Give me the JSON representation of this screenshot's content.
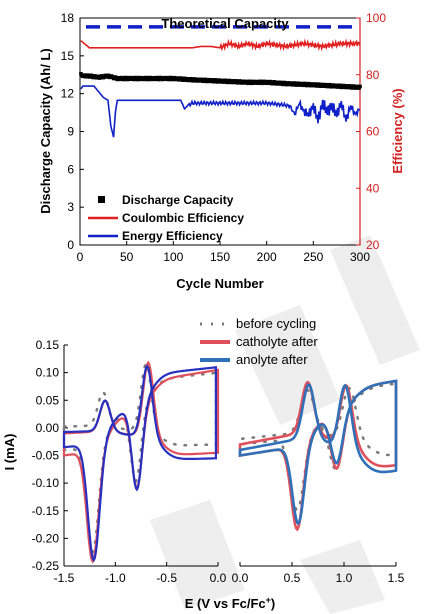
{
  "colors": {
    "discharge": "#000000",
    "coulombic": "#e02020",
    "energy": "#1020c8",
    "theoretical": "#1020c8",
    "before": "#7a7a7a",
    "catholyte": "#e0505a",
    "anolyte": "#3070b8",
    "cv_red": "#e0505a",
    "cv_blue": "#2830c0",
    "watermark": "#ececec"
  },
  "chart_data": [
    {
      "type": "line",
      "title": "",
      "xlabel": "Cycle Number",
      "ylabel": "Discharge Capacity (Ah/ L)",
      "y2label": "Efficiency (%)",
      "xlim": [
        0,
        300
      ],
      "ylim": [
        0,
        18
      ],
      "y2lim": [
        20,
        100
      ],
      "xticks": [
        "0",
        "50",
        "100",
        "150",
        "200",
        "250",
        "300"
      ],
      "yticks": [
        "0",
        "3",
        "6",
        "9",
        "12",
        "15",
        "18"
      ],
      "y2ticks": [
        "20",
        "40",
        "60",
        "80",
        "100"
      ],
      "annotation": "Theoretical Capacity",
      "theoretical_capacity": 17.3,
      "legend": [
        "Discharge Capacity",
        "Coulombic Efficiency",
        "Energy Efficiency"
      ],
      "legend_position": "bottom-left",
      "series": [
        {
          "name": "Discharge Capacity",
          "axis": "left",
          "x": [
            1,
            5,
            10,
            20,
            30,
            40,
            50,
            60,
            80,
            100,
            120,
            150,
            180,
            200,
            220,
            250,
            275,
            300
          ],
          "y": [
            13.5,
            13.4,
            13.4,
            13.3,
            13.4,
            13.2,
            13.2,
            13.2,
            13.2,
            13.2,
            13.1,
            13.0,
            12.9,
            12.9,
            12.8,
            12.7,
            12.6,
            12.5
          ]
        },
        {
          "name": "Coulombic Efficiency",
          "axis": "right",
          "x": [
            1,
            10,
            20,
            40,
            60,
            80,
            100,
            120,
            130,
            140,
            150,
            160,
            170,
            180,
            190,
            200,
            220,
            240,
            260,
            280,
            300
          ],
          "y": [
            92,
            89.5,
            89.5,
            89.5,
            89.5,
            89.5,
            89.5,
            89.5,
            90,
            90,
            89.5,
            91,
            90,
            91,
            90,
            91,
            90,
            91,
            90,
            91,
            91
          ]
        },
        {
          "name": "Energy Efficiency",
          "axis": "right",
          "x": [
            1,
            3,
            8,
            15,
            20,
            25,
            30,
            33,
            36,
            38,
            40,
            43,
            50,
            60,
            80,
            100,
            108,
            112,
            115,
            120,
            140,
            160,
            180,
            200,
            215,
            225,
            230,
            235,
            240,
            245,
            250,
            255,
            260,
            265,
            270,
            275,
            280,
            285,
            290,
            295,
            300
          ],
          "y": [
            75,
            76,
            76,
            76,
            74,
            72,
            71,
            62,
            58,
            67,
            71,
            71,
            71,
            71,
            71,
            71,
            71,
            68,
            69,
            70,
            70,
            70,
            70,
            70,
            69.5,
            69,
            66,
            70,
            67,
            66,
            69,
            64,
            70,
            67,
            69,
            66,
            70,
            64,
            69,
            66,
            68
          ]
        }
      ]
    },
    {
      "type": "line",
      "title": "",
      "xlabel": "",
      "ylabel": "I (mA)",
      "xlim": [
        -1.5,
        0.0
      ],
      "ylim": [
        -0.25,
        0.15
      ],
      "xticks": [
        "-1.5",
        "-1.0",
        "-0.5",
        "0.0"
      ],
      "yticks": [
        "0.15",
        "0.10",
        "0.05",
        "0.00",
        "-0.05",
        "-0.10",
        "-0.15",
        "-0.20",
        "-0.25"
      ],
      "series": [
        {
          "name": "before cycling",
          "style": "dotted"
        },
        {
          "name": "catholyte after",
          "style": "solid"
        },
        {
          "name": "anolyte after",
          "style": "solid"
        }
      ]
    },
    {
      "type": "line",
      "title": "",
      "xlabel": "",
      "ylabel": "",
      "xlim": [
        0.0,
        1.5
      ],
      "ylim": [
        -0.25,
        0.15
      ],
      "xticks": [
        "0.0",
        "0.5",
        "1.0",
        "1.5"
      ],
      "shared_xlabel": "E (V vs Fc/Fc+)",
      "shared_xlabel_sup": "+",
      "legend": [
        "before cycling",
        "catholyte after",
        "anolyte after"
      ],
      "legend_position": "top-right"
    }
  ]
}
